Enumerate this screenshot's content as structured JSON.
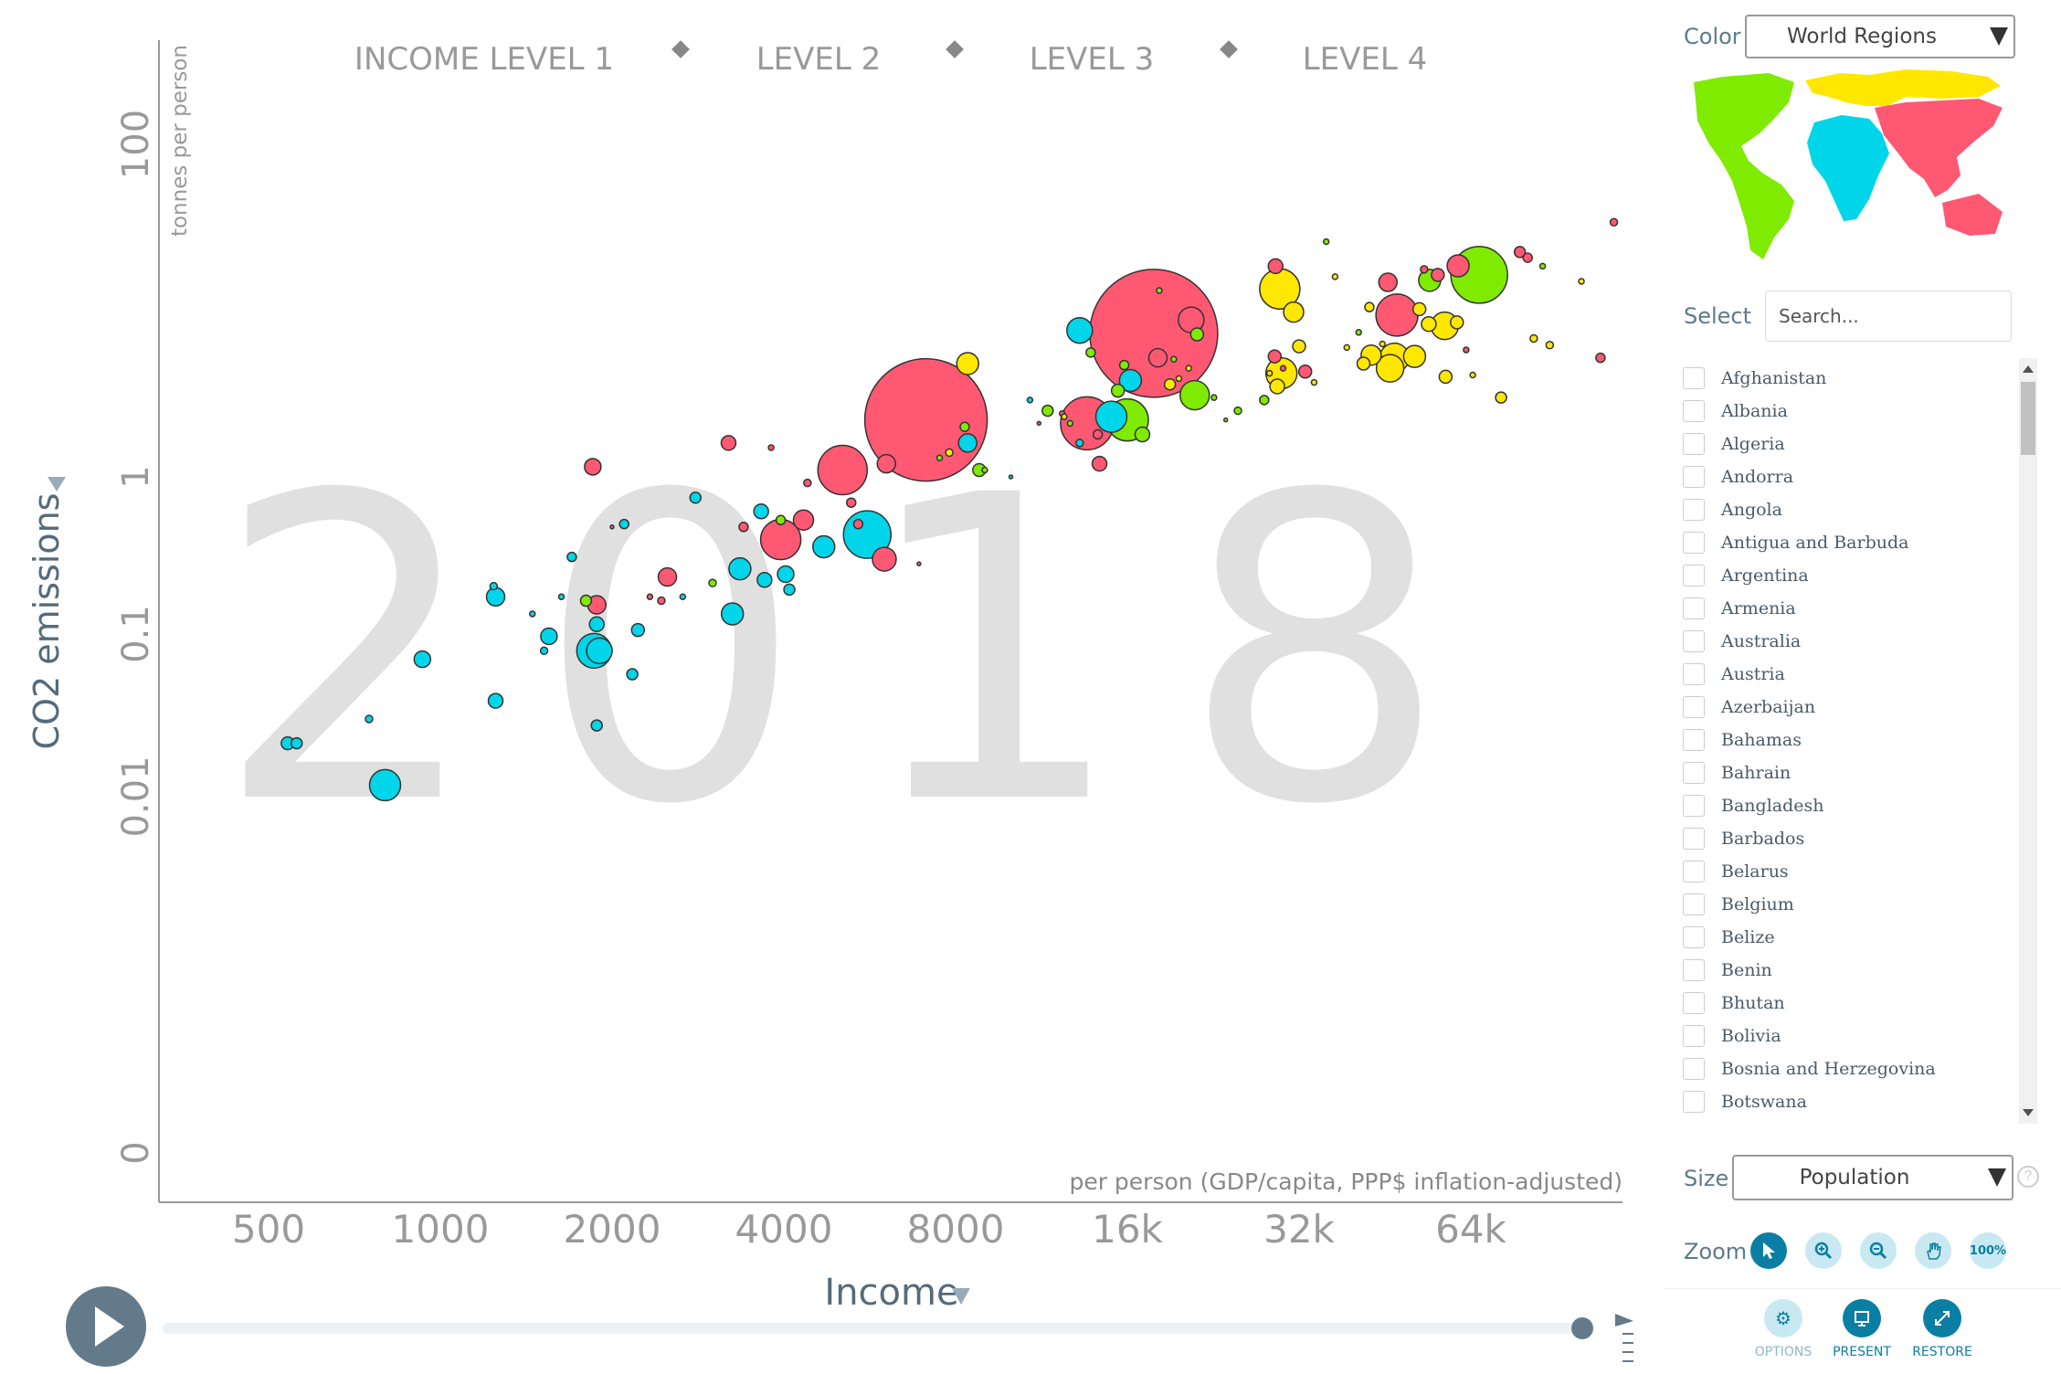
{
  "chart_data": {
    "type": "scatter",
    "year": "2018",
    "x_axis": {
      "label": "Income",
      "sublabel": "per person (GDP/capita, PPP$ inflation-adjusted)",
      "scale": "log",
      "ticks": [
        "500",
        "1000",
        "2000",
        "4000",
        "8000",
        "16k",
        "32k",
        "64k"
      ],
      "tick_values": [
        500,
        1000,
        2000,
        4000,
        8000,
        16000,
        32000,
        64000
      ]
    },
    "y_axis": {
      "label": "CO2 emissions",
      "sublabel": "tonnes per person",
      "scale": "log",
      "ticks": [
        "100",
        "1",
        "0.1",
        "0.01",
        "0"
      ],
      "tick_values": [
        100,
        1,
        0.1,
        0.01,
        0.0001
      ]
    },
    "income_levels": [
      "INCOME LEVEL 1",
      "LEVEL 2",
      "LEVEL 3",
      "LEVEL 4"
    ],
    "region_colors": {
      "africa": "#00d5e9",
      "asia": "#ff5872",
      "americas": "#7feb00",
      "europe": "#ffe700"
    },
    "points": [
      {
        "x": 540,
        "y": 0.025,
        "r": 7,
        "region": "africa"
      },
      {
        "x": 560,
        "y": 0.025,
        "r": 6,
        "region": "africa"
      },
      {
        "x": 750,
        "y": 0.035,
        "r": 4,
        "region": "africa"
      },
      {
        "x": 800,
        "y": 0.014,
        "r": 17,
        "region": "africa"
      },
      {
        "x": 930,
        "y": 0.08,
        "r": 9,
        "region": "africa"
      },
      {
        "x": 1250,
        "y": 0.045,
        "r": 8,
        "region": "africa"
      },
      {
        "x": 1250,
        "y": 0.19,
        "r": 10,
        "region": "africa"
      },
      {
        "x": 1240,
        "y": 0.22,
        "r": 4,
        "region": "africa"
      },
      {
        "x": 1450,
        "y": 0.15,
        "r": 3,
        "region": "africa"
      },
      {
        "x": 1550,
        "y": 0.11,
        "r": 9,
        "region": "africa"
      },
      {
        "x": 1520,
        "y": 0.09,
        "r": 4,
        "region": "africa"
      },
      {
        "x": 1630,
        "y": 0.19,
        "r": 3,
        "region": "africa"
      },
      {
        "x": 1700,
        "y": 0.33,
        "r": 5,
        "region": "africa"
      },
      {
        "x": 1800,
        "y": 0.18,
        "r": 6,
        "region": "americas"
      },
      {
        "x": 1850,
        "y": 1.15,
        "r": 9,
        "region": "asia"
      },
      {
        "x": 1880,
        "y": 0.17,
        "r": 10,
        "region": "asia"
      },
      {
        "x": 1880,
        "y": 0.13,
        "r": 8,
        "region": "africa"
      },
      {
        "x": 1860,
        "y": 0.09,
        "r": 19,
        "region": "africa"
      },
      {
        "x": 1900,
        "y": 0.09,
        "r": 14,
        "region": "africa"
      },
      {
        "x": 1880,
        "y": 0.032,
        "r": 6,
        "region": "africa"
      },
      {
        "x": 2000,
        "y": 0.5,
        "r": 2,
        "region": "asia"
      },
      {
        "x": 2100,
        "y": 0.52,
        "r": 5,
        "region": "africa"
      },
      {
        "x": 2170,
        "y": 0.065,
        "r": 6,
        "region": "africa"
      },
      {
        "x": 2220,
        "y": 0.12,
        "r": 7,
        "region": "africa"
      },
      {
        "x": 2330,
        "y": 0.19,
        "r": 3,
        "region": "asia"
      },
      {
        "x": 2440,
        "y": 0.18,
        "r": 4,
        "region": "asia"
      },
      {
        "x": 2500,
        "y": 0.25,
        "r": 10,
        "region": "asia"
      },
      {
        "x": 2660,
        "y": 0.19,
        "r": 3,
        "region": "africa"
      },
      {
        "x": 2800,
        "y": 0.75,
        "r": 6,
        "region": "africa"
      },
      {
        "x": 3000,
        "y": 0.23,
        "r": 4,
        "region": "americas"
      },
      {
        "x": 3200,
        "y": 1.6,
        "r": 8,
        "region": "asia"
      },
      {
        "x": 3250,
        "y": 0.15,
        "r": 12,
        "region": "africa"
      },
      {
        "x": 3350,
        "y": 0.28,
        "r": 12,
        "region": "africa"
      },
      {
        "x": 3400,
        "y": 0.5,
        "r": 5,
        "region": "asia"
      },
      {
        "x": 3650,
        "y": 0.62,
        "r": 8,
        "region": "africa"
      },
      {
        "x": 3700,
        "y": 0.24,
        "r": 8,
        "region": "africa"
      },
      {
        "x": 3800,
        "y": 1.5,
        "r": 3,
        "region": "asia"
      },
      {
        "x": 3950,
        "y": 0.55,
        "r": 5,
        "region": "americas"
      },
      {
        "x": 3950,
        "y": 0.42,
        "r": 22,
        "region": "asia"
      },
      {
        "x": 4030,
        "y": 0.26,
        "r": 9,
        "region": "africa"
      },
      {
        "x": 4090,
        "y": 0.21,
        "r": 6,
        "region": "africa"
      },
      {
        "x": 4330,
        "y": 0.55,
        "r": 11,
        "region": "asia"
      },
      {
        "x": 4400,
        "y": 0.92,
        "r": 4,
        "region": "asia"
      },
      {
        "x": 4700,
        "y": 0.38,
        "r": 12,
        "region": "africa"
      },
      {
        "x": 5070,
        "y": 1.1,
        "r": 27,
        "region": "asia"
      },
      {
        "x": 5250,
        "y": 0.7,
        "r": 5,
        "region": "asia"
      },
      {
        "x": 5400,
        "y": 0.52,
        "r": 5,
        "region": "asia"
      },
      {
        "x": 5600,
        "y": 0.45,
        "r": 26,
        "region": "africa"
      },
      {
        "x": 6000,
        "y": 0.32,
        "r": 13,
        "region": "asia"
      },
      {
        "x": 6050,
        "y": 1.2,
        "r": 10,
        "region": "asia"
      },
      {
        "x": 7100,
        "y": 2.2,
        "r": 67,
        "region": "asia"
      },
      {
        "x": 7500,
        "y": 1.3,
        "r": 3,
        "region": "americas"
      },
      {
        "x": 6900,
        "y": 0.3,
        "r": 2,
        "region": "asia"
      },
      {
        "x": 8400,
        "y": 4.8,
        "r": 12,
        "region": "europe"
      },
      {
        "x": 7800,
        "y": 1.4,
        "r": 4,
        "region": "europe"
      },
      {
        "x": 8300,
        "y": 2.0,
        "r": 5,
        "region": "americas"
      },
      {
        "x": 8400,
        "y": 1.6,
        "r": 10,
        "region": "africa"
      },
      {
        "x": 8800,
        "y": 1.1,
        "r": 7,
        "region": "americas"
      },
      {
        "x": 9000,
        "y": 1.1,
        "r": 3,
        "region": "americas"
      },
      {
        "x": 10000,
        "y": 1.0,
        "r": 2,
        "region": "africa"
      },
      {
        "x": 10800,
        "y": 2.9,
        "r": 3,
        "region": "africa"
      },
      {
        "x": 11200,
        "y": 2.1,
        "r": 2,
        "region": "asia"
      },
      {
        "x": 11600,
        "y": 2.5,
        "r": 6,
        "region": "americas"
      },
      {
        "x": 12300,
        "y": 2.4,
        "r": 3,
        "region": "asia"
      },
      {
        "x": 12400,
        "y": 2.3,
        "r": 3,
        "region": "europe"
      },
      {
        "x": 12700,
        "y": 2.1,
        "r": 3,
        "region": "americas"
      },
      {
        "x": 13200,
        "y": 1.6,
        "r": 4,
        "region": "africa"
      },
      {
        "x": 13600,
        "y": 2.1,
        "r": 29,
        "region": "asia"
      },
      {
        "x": 14200,
        "y": 1.8,
        "r": 5,
        "region": "asia"
      },
      {
        "x": 13200,
        "y": 7.6,
        "r": 14,
        "region": "africa"
      },
      {
        "x": 13800,
        "y": 5.6,
        "r": 5,
        "region": "americas"
      },
      {
        "x": 15000,
        "y": 2.3,
        "r": 17,
        "region": "africa"
      },
      {
        "x": 14300,
        "y": 1.2,
        "r": 8,
        "region": "asia"
      },
      {
        "x": 15800,
        "y": 4.7,
        "r": 5,
        "region": "americas"
      },
      {
        "x": 15400,
        "y": 3.3,
        "r": 7,
        "region": "americas"
      },
      {
        "x": 16200,
        "y": 3.8,
        "r": 12,
        "region": "africa"
      },
      {
        "x": 16000,
        "y": 2.2,
        "r": 23,
        "region": "americas"
      },
      {
        "x": 17000,
        "y": 1.8,
        "r": 8,
        "region": "americas"
      },
      {
        "x": 17800,
        "y": 7.3,
        "r": 70,
        "region": "asia"
      },
      {
        "x": 18200,
        "y": 13.2,
        "r": 3,
        "region": "americas"
      },
      {
        "x": 18100,
        "y": 5.2,
        "r": 10,
        "region": "asia"
      },
      {
        "x": 19000,
        "y": 3.6,
        "r": 6,
        "region": "europe"
      },
      {
        "x": 21000,
        "y": 3.1,
        "r": 16,
        "region": "americas"
      },
      {
        "x": 20700,
        "y": 8.8,
        "r": 14,
        "region": "asia"
      },
      {
        "x": 21200,
        "y": 7.2,
        "r": 7,
        "region": "americas"
      },
      {
        "x": 19700,
        "y": 3.9,
        "r": 3,
        "region": "europe"
      },
      {
        "x": 19300,
        "y": 5.1,
        "r": 3,
        "region": "americas"
      },
      {
        "x": 20500,
        "y": 4.5,
        "r": 3,
        "region": "europe"
      },
      {
        "x": 22700,
        "y": 3.0,
        "r": 3,
        "region": "americas"
      },
      {
        "x": 23800,
        "y": 2.2,
        "r": 2,
        "region": "americas"
      },
      {
        "x": 25000,
        "y": 2.5,
        "r": 4,
        "region": "americas"
      },
      {
        "x": 27800,
        "y": 2.9,
        "r": 5,
        "region": "americas"
      },
      {
        "x": 28400,
        "y": 4.2,
        "r": 3,
        "region": "europe"
      },
      {
        "x": 30000,
        "y": 4.5,
        "r": 3,
        "region": "asia"
      },
      {
        "x": 29600,
        "y": 13.5,
        "r": 22,
        "region": "europe"
      },
      {
        "x": 29100,
        "y": 18.5,
        "r": 8,
        "region": "asia"
      },
      {
        "x": 31300,
        "y": 9.8,
        "r": 11,
        "region": "europe"
      },
      {
        "x": 32000,
        "y": 6.1,
        "r": 7,
        "region": "europe"
      },
      {
        "x": 29800,
        "y": 4.2,
        "r": 17,
        "region": "europe"
      },
      {
        "x": 29300,
        "y": 3.5,
        "r": 8,
        "region": "europe"
      },
      {
        "x": 29000,
        "y": 5.3,
        "r": 7,
        "region": "asia"
      },
      {
        "x": 32800,
        "y": 4.3,
        "r": 7,
        "region": "asia"
      },
      {
        "x": 34000,
        "y": 3.7,
        "r": 3,
        "region": "europe"
      },
      {
        "x": 35700,
        "y": 26.0,
        "r": 3,
        "region": "americas"
      },
      {
        "x": 37000,
        "y": 16.0,
        "r": 3,
        "region": "europe"
      },
      {
        "x": 38800,
        "y": 6.0,
        "r": 3,
        "region": "europe"
      },
      {
        "x": 40700,
        "y": 7.4,
        "r": 3,
        "region": "americas"
      },
      {
        "x": 41500,
        "y": 4.8,
        "r": 7,
        "region": "europe"
      },
      {
        "x": 42800,
        "y": 5.4,
        "r": 11,
        "region": "europe"
      },
      {
        "x": 42500,
        "y": 10.5,
        "r": 5,
        "region": "europe"
      },
      {
        "x": 44800,
        "y": 6.3,
        "r": 3,
        "region": "europe"
      },
      {
        "x": 45800,
        "y": 14.8,
        "r": 10,
        "region": "asia"
      },
      {
        "x": 47500,
        "y": 9.4,
        "r": 23,
        "region": "asia"
      },
      {
        "x": 47000,
        "y": 5.2,
        "r": 16,
        "region": "europe"
      },
      {
        "x": 46200,
        "y": 4.5,
        "r": 15,
        "region": "europe"
      },
      {
        "x": 51000,
        "y": 5.3,
        "r": 12,
        "region": "europe"
      },
      {
        "x": 52000,
        "y": 10.2,
        "r": 7,
        "region": "europe"
      },
      {
        "x": 53000,
        "y": 17.7,
        "r": 4,
        "region": "asia"
      },
      {
        "x": 54200,
        "y": 15.2,
        "r": 12,
        "region": "americas"
      },
      {
        "x": 56000,
        "y": 16.4,
        "r": 7,
        "region": "asia"
      },
      {
        "x": 54000,
        "y": 8.3,
        "r": 8,
        "region": "europe"
      },
      {
        "x": 57600,
        "y": 8.1,
        "r": 15,
        "region": "europe"
      },
      {
        "x": 60500,
        "y": 8.5,
        "r": 7,
        "region": "europe"
      },
      {
        "x": 60800,
        "y": 18.6,
        "r": 12,
        "region": "asia"
      },
      {
        "x": 57800,
        "y": 4.0,
        "r": 7,
        "region": "europe"
      },
      {
        "x": 62800,
        "y": 5.8,
        "r": 3,
        "region": "asia"
      },
      {
        "x": 64500,
        "y": 4.1,
        "r": 3,
        "region": "europe"
      },
      {
        "x": 66200,
        "y": 16.4,
        "r": 31,
        "region": "americas"
      },
      {
        "x": 72300,
        "y": 3.0,
        "r": 6,
        "region": "europe"
      },
      {
        "x": 78000,
        "y": 22.5,
        "r": 6,
        "region": "asia"
      },
      {
        "x": 80500,
        "y": 20.8,
        "r": 5,
        "region": "asia"
      },
      {
        "x": 82500,
        "y": 6.8,
        "r": 4,
        "region": "europe"
      },
      {
        "x": 85500,
        "y": 18.5,
        "r": 3,
        "region": "americas"
      },
      {
        "x": 88000,
        "y": 6.2,
        "r": 4,
        "region": "europe"
      },
      {
        "x": 100000,
        "y": 15.0,
        "r": 3,
        "region": "europe"
      },
      {
        "x": 108000,
        "y": 5.2,
        "r": 5,
        "region": "asia"
      },
      {
        "x": 114000,
        "y": 34.0,
        "r": 4,
        "region": "asia"
      }
    ]
  },
  "panel": {
    "color_label": "Color",
    "color_value": "World Regions",
    "select_label": "Select",
    "search_placeholder": "Search...",
    "size_label": "Size",
    "size_value": "Population",
    "zoom_label": "Zoom",
    "zoom_100": "100%",
    "actions": {
      "options": "OPTIONS",
      "present": "PRESENT",
      "restore": "RESTORE"
    }
  },
  "countries": [
    "Afghanistan",
    "Albania",
    "Algeria",
    "Andorra",
    "Angola",
    "Antigua and Barbuda",
    "Argentina",
    "Armenia",
    "Australia",
    "Austria",
    "Azerbaijan",
    "Bahamas",
    "Bahrain",
    "Bangladesh",
    "Barbados",
    "Belarus",
    "Belgium",
    "Belize",
    "Benin",
    "Bhutan",
    "Bolivia",
    "Bosnia and Herzegovina",
    "Botswana"
  ],
  "colors": {
    "accent": "#0b7fa3",
    "accent_light": "#c9e9f2",
    "axis_text": "#999999",
    "play": "#637a8a",
    "year": "#e0e0e0"
  }
}
